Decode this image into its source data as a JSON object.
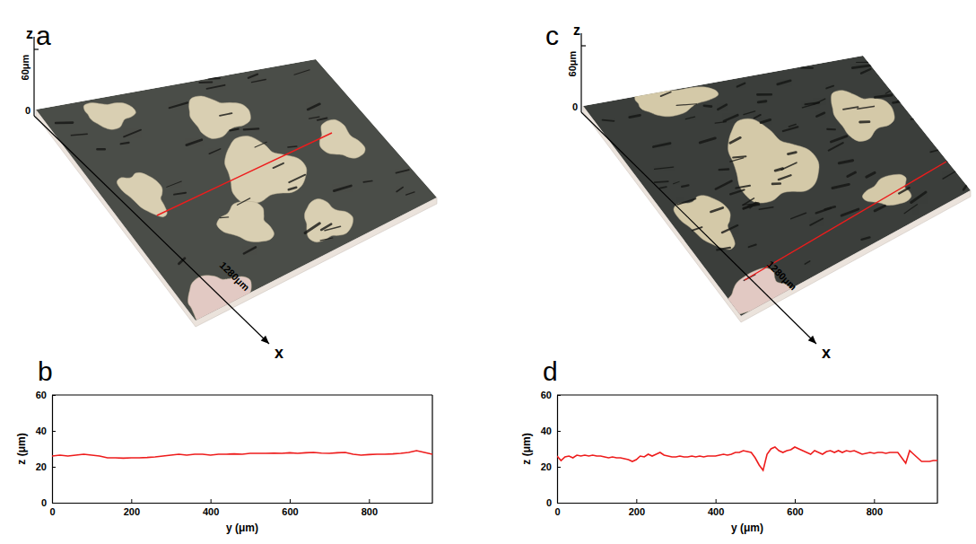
{
  "figure_panels": [
    {
      "panel": "a",
      "z_axis": {
        "label": "z",
        "end": "60μm",
        "origin": "0"
      },
      "x_axis": {
        "label": "x",
        "length": "1280μm"
      }
    },
    {
      "panel": "c",
      "z_axis": {
        "label": "z",
        "end": "60μm",
        "origin": "0"
      },
      "x_axis": {
        "label": "x",
        "length": "1280μm"
      }
    }
  ],
  "chart_data": [
    {
      "type": "line",
      "panel": "b",
      "x_label": "y (μm)",
      "y_label": "z (μm)",
      "color": "#ee1c1c",
      "xlim": [
        0,
        960
      ],
      "ylim": [
        0,
        60
      ],
      "xticks": [
        0,
        200,
        400,
        600,
        800
      ],
      "yticks": [
        0,
        20,
        40,
        60
      ],
      "x": [
        0,
        20,
        40,
        60,
        80,
        100,
        120,
        140,
        160,
        180,
        200,
        220,
        240,
        260,
        280,
        300,
        320,
        340,
        360,
        380,
        400,
        420,
        440,
        460,
        480,
        500,
        520,
        540,
        560,
        580,
        600,
        620,
        640,
        660,
        680,
        700,
        720,
        740,
        760,
        780,
        800,
        820,
        840,
        860,
        880,
        900,
        920,
        940,
        960
      ],
      "values": [
        26,
        26.5,
        26,
        26.5,
        27,
        26.5,
        26,
        25,
        25,
        24.8,
        25,
        25,
        25.2,
        25.5,
        26,
        26.5,
        27,
        26.5,
        27,
        27,
        26.5,
        27,
        27,
        27.2,
        27,
        27.5,
        27.5,
        27.5,
        27.6,
        27.5,
        27.8,
        27.5,
        27.8,
        28,
        27.6,
        27.5,
        27.8,
        28,
        27,
        26.5,
        26.8,
        27,
        27,
        27.2,
        27.5,
        28,
        29,
        28,
        27
      ]
    },
    {
      "type": "line",
      "panel": "d",
      "x_label": "y (μm)",
      "y_label": "z (μm)",
      "color": "#ee1c1c",
      "xlim": [
        0,
        960
      ],
      "ylim": [
        0,
        60
      ],
      "xticks": [
        0,
        200,
        400,
        600,
        800
      ],
      "yticks": [
        0,
        20,
        40,
        60
      ],
      "x": [
        0,
        10,
        20,
        30,
        40,
        50,
        60,
        70,
        80,
        90,
        100,
        110,
        120,
        130,
        140,
        150,
        160,
        170,
        180,
        190,
        200,
        210,
        220,
        230,
        240,
        250,
        260,
        270,
        280,
        290,
        300,
        310,
        320,
        330,
        340,
        350,
        360,
        370,
        380,
        390,
        400,
        410,
        420,
        430,
        440,
        450,
        460,
        470,
        480,
        490,
        500,
        510,
        520,
        530,
        540,
        550,
        560,
        570,
        580,
        590,
        600,
        610,
        620,
        630,
        640,
        650,
        660,
        670,
        680,
        690,
        700,
        710,
        720,
        730,
        740,
        750,
        760,
        770,
        780,
        790,
        800,
        810,
        820,
        830,
        840,
        850,
        860,
        870,
        880,
        890,
        900,
        910,
        920,
        930,
        940,
        950,
        960
      ],
      "values": [
        26,
        23.5,
        25.5,
        26,
        25,
        26.5,
        26,
        26.5,
        26,
        26.5,
        26,
        26,
        25.5,
        25,
        25.5,
        25,
        25,
        24.5,
        24,
        23,
        24,
        26,
        25.5,
        27,
        26,
        27,
        28,
        26.5,
        26,
        25.5,
        25.5,
        26,
        25.5,
        25.5,
        26,
        25.5,
        26,
        25.5,
        26,
        26,
        26,
        26.5,
        27,
        26.5,
        27,
        28,
        28,
        29,
        28.5,
        28,
        25,
        21,
        18,
        27,
        30,
        31,
        29,
        28,
        29,
        29.5,
        31,
        30,
        29,
        28,
        27,
        29,
        28,
        27,
        28.5,
        29,
        28,
        29,
        28,
        29,
        28.5,
        29,
        28,
        27,
        27.5,
        28,
        27.5,
        28,
        28,
        27.5,
        28,
        28,
        28,
        25,
        22,
        29,
        27,
        25,
        23,
        23,
        23,
        23.5,
        23.5
      ]
    }
  ]
}
